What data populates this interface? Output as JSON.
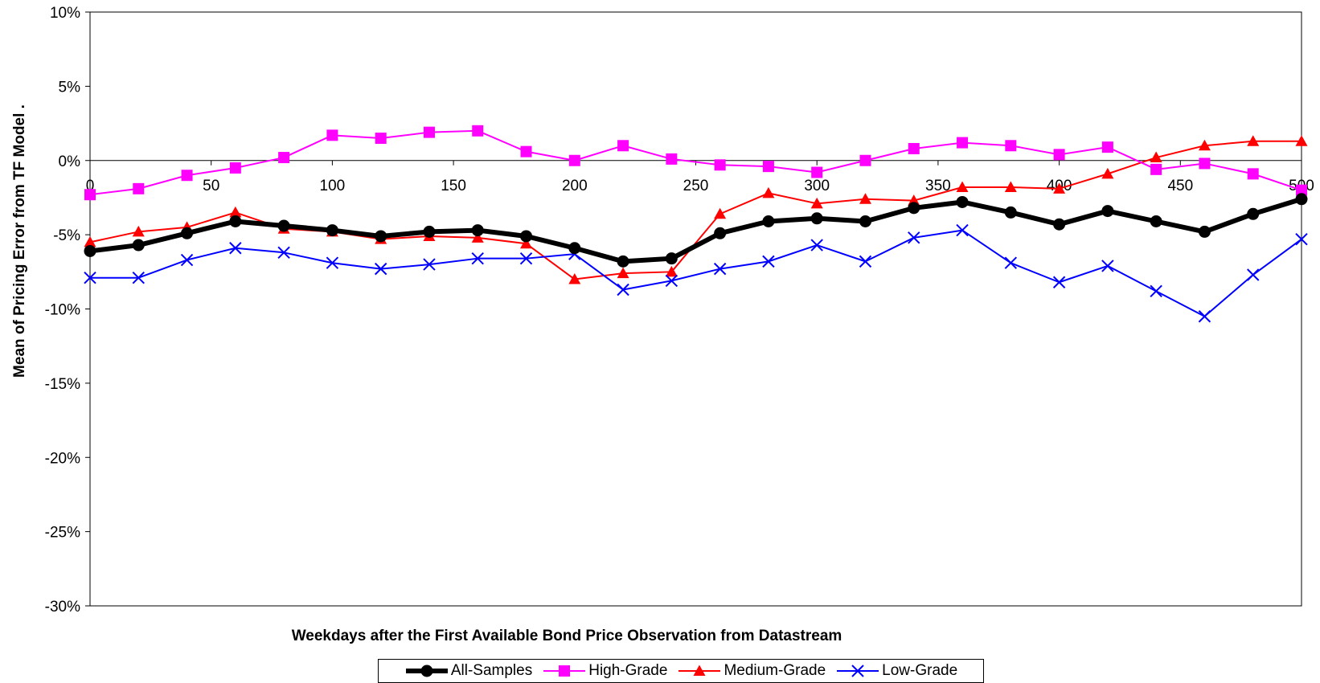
{
  "chart_data": {
    "type": "line",
    "title": "",
    "xlabel": "Weekdays after the First Available Bond Price Observation from Datastream",
    "ylabel": "Mean of Pricing Error from TF Model  .",
    "xlim": [
      0,
      500
    ],
    "ylim": [
      -30,
      10
    ],
    "x_ticks": [
      0,
      50,
      100,
      150,
      200,
      250,
      300,
      350,
      400,
      450,
      500
    ],
    "y_ticks": [
      -30,
      -25,
      -20,
      -15,
      -10,
      -5,
      0,
      5,
      10
    ],
    "y_tick_labels": [
      "-30%",
      "-25%",
      "-20%",
      "-15%",
      "-10%",
      "-5%",
      "0%",
      "5%",
      "10%"
    ],
    "x": [
      0,
      20,
      40,
      60,
      80,
      100,
      120,
      140,
      160,
      180,
      200,
      220,
      240,
      260,
      280,
      300,
      320,
      340,
      360,
      380,
      400,
      420,
      440,
      460,
      480,
      500
    ],
    "series": [
      {
        "name": "All-Samples",
        "color": "#000000",
        "marker": "circle",
        "values": [
          -6.1,
          -5.7,
          -4.9,
          -4.1,
          -4.4,
          -4.7,
          -5.1,
          -4.8,
          -4.7,
          -5.1,
          -5.9,
          -6.8,
          -6.6,
          -4.9,
          -4.1,
          -3.9,
          -4.1,
          -3.2,
          -2.8,
          -3.5,
          -4.3,
          -3.4,
          -4.1,
          -4.8,
          -3.6,
          -2.6
        ]
      },
      {
        "name": "High-Grade",
        "color": "#ff00ff",
        "marker": "square",
        "values": [
          -2.3,
          -1.9,
          -1.0,
          -0.5,
          0.2,
          1.7,
          1.5,
          1.9,
          2.0,
          0.6,
          0.0,
          1.0,
          0.1,
          -0.3,
          -0.4,
          -0.8,
          0.0,
          0.8,
          1.2,
          1.0,
          0.4,
          0.9,
          -0.6,
          -0.2,
          -0.9,
          -2.0
        ]
      },
      {
        "name": "Medium-Grade",
        "color": "#ff0000",
        "marker": "triangle",
        "values": [
          -5.5,
          -4.8,
          -4.5,
          -3.5,
          -4.6,
          -4.8,
          -5.3,
          -5.1,
          -5.2,
          -5.6,
          -8.0,
          -7.6,
          -7.5,
          -3.6,
          -2.2,
          -2.9,
          -2.6,
          -2.7,
          -1.8,
          -1.8,
          -1.9,
          -0.9,
          0.2,
          1.0,
          1.3,
          1.3
        ]
      },
      {
        "name": "Low-Grade",
        "color": "#0000ff",
        "marker": "x",
        "values": [
          -7.9,
          -7.9,
          -6.7,
          -5.9,
          -6.2,
          -6.9,
          -7.3,
          -7.0,
          -6.6,
          -6.6,
          -6.3,
          -8.7,
          -8.1,
          -7.3,
          -6.8,
          -5.7,
          -6.8,
          -5.2,
          -4.7,
          -6.9,
          -8.2,
          -7.1,
          -8.8,
          -10.5,
          -7.7,
          -5.3
        ]
      }
    ],
    "legend_position": "bottom",
    "grid": false
  }
}
